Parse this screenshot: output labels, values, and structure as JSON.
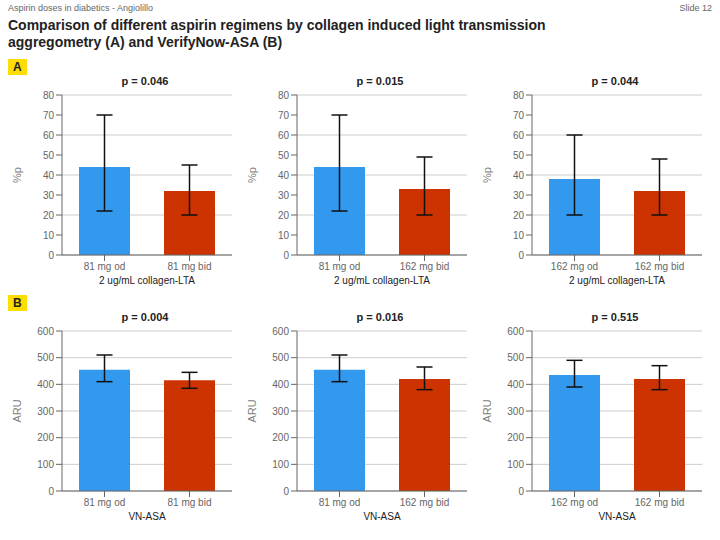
{
  "title": "Comparison of different aspirin regimens by collagen induced light transmission aggregometry (A) and VerifyNow-ASA (B)",
  "annotations": [
    "Aspirin doses in diabetics - Angiolillo",
    "Slide 12",
    "A",
    "B"
  ],
  "chart_data": [
    {
      "type": "bar",
      "categories": [
        "81 mg od",
        "81 mg bid"
      ],
      "values": [
        44,
        32
      ],
      "errors_minus": [
        22,
        12
      ],
      "errors_plus": [
        26,
        13
      ],
      "colors": [
        "#3399ee",
        "#cc3300"
      ],
      "annotations": [
        "p = 0.046"
      ],
      "ylabel": "%p",
      "xlabel": "2 ug/mL collagen-LTA",
      "ylim": [
        0,
        80
      ],
      "yticks": [
        0,
        10,
        20,
        30,
        40,
        50,
        60,
        70,
        80
      ],
      "grid": true
    },
    {
      "type": "bar",
      "categories": [
        "81 mg od",
        "162 mg bid"
      ],
      "values": [
        44,
        33
      ],
      "errors_minus": [
        22,
        13
      ],
      "errors_plus": [
        26,
        16
      ],
      "colors": [
        "#3399ee",
        "#cc3300"
      ],
      "annotations": [
        "p = 0.015"
      ],
      "ylabel": "%p",
      "xlabel": "2 ug/mL collagen-LTA",
      "ylim": [
        0,
        80
      ],
      "yticks": [
        0,
        10,
        20,
        30,
        40,
        50,
        60,
        70,
        80
      ],
      "grid": true
    },
    {
      "type": "bar",
      "categories": [
        "162 mg od",
        "162 mg bid"
      ],
      "values": [
        38,
        32
      ],
      "errors_minus": [
        18,
        12
      ],
      "errors_plus": [
        22,
        16
      ],
      "colors": [
        "#3399ee",
        "#cc3300"
      ],
      "annotations": [
        "p = 0.044"
      ],
      "ylabel": "%p",
      "xlabel": "2 ug/mL collagen-LTA",
      "ylim": [
        0,
        80
      ],
      "yticks": [
        0,
        10,
        20,
        30,
        40,
        50,
        60,
        70,
        80
      ],
      "grid": true
    },
    {
      "type": "bar",
      "categories": [
        "81 mg od",
        "81 mg bid"
      ],
      "values": [
        455,
        415
      ],
      "errors_minus": [
        45,
        30
      ],
      "errors_plus": [
        55,
        30
      ],
      "colors": [
        "#3399ee",
        "#cc3300"
      ],
      "annotations": [
        "p = 0.004"
      ],
      "ylabel": "ARU",
      "xlabel": "VN-ASA",
      "ylim": [
        0,
        600
      ],
      "yticks": [
        0,
        100,
        200,
        300,
        400,
        500,
        600
      ],
      "grid": true
    },
    {
      "type": "bar",
      "categories": [
        "81 mg od",
        "162 mg bid"
      ],
      "values": [
        455,
        420
      ],
      "errors_minus": [
        45,
        40
      ],
      "errors_plus": [
        55,
        45
      ],
      "colors": [
        "#3399ee",
        "#cc3300"
      ],
      "annotations": [
        "p = 0.016"
      ],
      "ylabel": "ARU",
      "xlabel": "VN-ASA",
      "ylim": [
        0,
        600
      ],
      "yticks": [
        0,
        100,
        200,
        300,
        400,
        500,
        600
      ],
      "grid": true
    },
    {
      "type": "bar",
      "categories": [
        "162 mg od",
        "162 mg bid"
      ],
      "values": [
        435,
        420
      ],
      "errors_minus": [
        45,
        40
      ],
      "errors_plus": [
        55,
        50
      ],
      "colors": [
        "#3399ee",
        "#cc3300"
      ],
      "annotations": [
        "p = 0.515"
      ],
      "ylabel": "ARU",
      "xlabel": "VN-ASA",
      "ylim": [
        0,
        600
      ],
      "yticks": [
        0,
        100,
        200,
        300,
        400,
        500,
        600
      ],
      "grid": true
    }
  ]
}
